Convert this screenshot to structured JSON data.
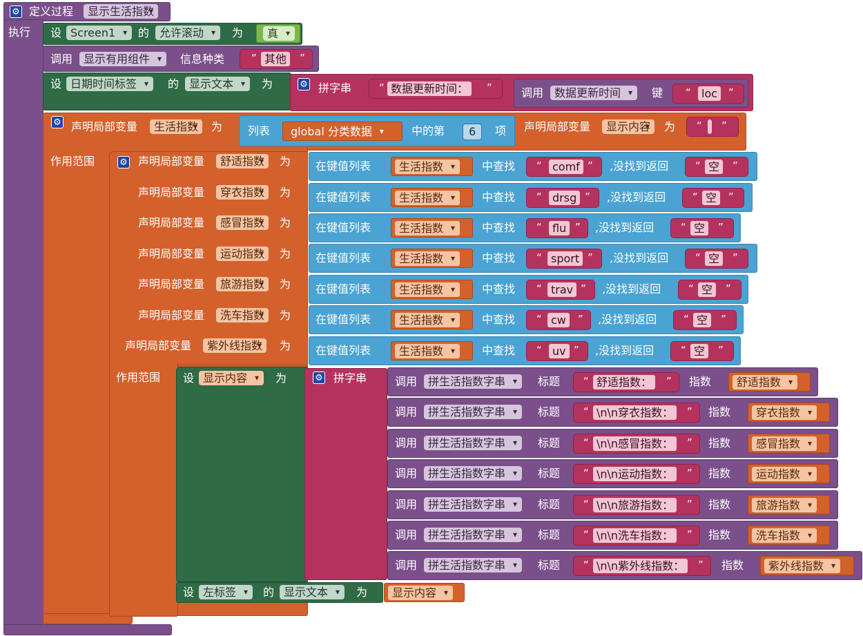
{
  "procedure": {
    "define_label": "定义过程",
    "name": "显示生活指数",
    "do_label": "执行"
  },
  "kw": {
    "set": "设",
    "of": "的",
    "to": "为",
    "call": "调用",
    "join": "拼字串",
    "declare": "声明局部变量",
    "scope": "作用范围",
    "list": "列表",
    "index_of": "中的第",
    "item": "项",
    "kv_list": "在键值列表",
    "find": "中查找",
    "not_found": ",没找到返回",
    "title": "标题",
    "index": "指数",
    "info_type": "信息种类",
    "key": "键"
  },
  "row1": {
    "component": "Screen1",
    "property": "允许滚动",
    "value": "真"
  },
  "row2": {
    "procedure": "显示有用组件",
    "arg": "其他"
  },
  "row3": {
    "component": "日期时间标签",
    "property": "显示文本",
    "join_text": "数据更新时间：",
    "call_proc": "数据更新时间",
    "key_value": "loc"
  },
  "row4": {
    "var": "生活指数",
    "list_var": "global 分类数据",
    "index": "6",
    "var2": "显示内容",
    "var2_value": " "
  },
  "locals": [
    {
      "name": "舒适指数",
      "key": "comf",
      "default": "空"
    },
    {
      "name": "穿衣指数",
      "key": "drsg",
      "default": "空"
    },
    {
      "name": "感冒指数",
      "key": "flu",
      "default": "空"
    },
    {
      "name": "运动指数",
      "key": "sport",
      "default": "空"
    },
    {
      "name": "旅游指数",
      "key": "trav",
      "default": "空"
    },
    {
      "name": "洗车指数",
      "key": "cw",
      "default": "空"
    },
    {
      "name": "紫外线指数",
      "key": "uv",
      "default": "空"
    }
  ],
  "lookup_var": "生活指数",
  "inner_set_var": "显示内容",
  "join_proc": "拼生活指数字串",
  "joins": [
    {
      "title": "舒适指数：",
      "var": "舒适指数"
    },
    {
      "title": "\\n\\n穿衣指数：",
      "var": "穿衣指数"
    },
    {
      "title": "\\n\\n感冒指数：",
      "var": "感冒指数"
    },
    {
      "title": "\\n\\n运动指数：",
      "var": "运动指数"
    },
    {
      "title": "\\n\\n旅游指数：",
      "var": "旅游指数"
    },
    {
      "title": "\\n\\n洗车指数：",
      "var": "洗车指数"
    },
    {
      "title": "\\n\\n紫外线指数：",
      "var": "紫外线指数"
    }
  ],
  "last": {
    "component": "左标签",
    "property": "显示文本",
    "value": "显示内容"
  },
  "colors": {
    "procedure": "#7a4f8a",
    "set": "#2f6b45",
    "text": "#b5325f",
    "variable": "#d4602c",
    "dictionary": "#4aa3d3",
    "logic": "#7ab84c",
    "math": "#3578a0"
  }
}
